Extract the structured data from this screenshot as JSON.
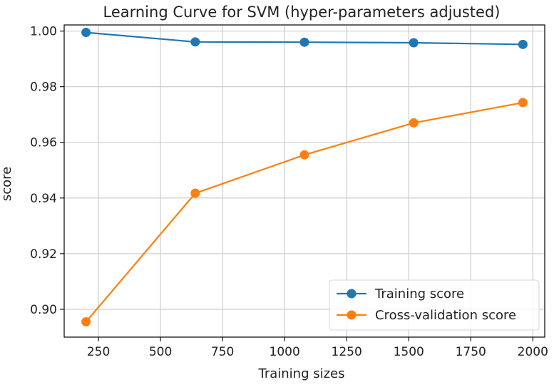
{
  "chart_data": {
    "type": "line",
    "title": "Learning Curve for SVM (hyper-parameters adjusted)",
    "xlabel": "Training sizes",
    "ylabel": "score",
    "x": [
      200,
      640,
      1080,
      1520,
      1960
    ],
    "series": [
      {
        "name": "Training score",
        "color": "#1f77b4",
        "values": [
          0.9995,
          0.9961,
          0.996,
          0.9958,
          0.9952
        ]
      },
      {
        "name": "Cross-validation score",
        "color": "#ff7f0e",
        "values": [
          0.8955,
          0.9417,
          0.9555,
          0.967,
          0.9743
        ]
      }
    ],
    "xticks": [
      250,
      500,
      750,
      1000,
      1250,
      1500,
      1750,
      2000
    ],
    "xtick_labels": [
      "250",
      "500",
      "750",
      "1000",
      "1250",
      "1500",
      "1750",
      "2000"
    ],
    "yticks": [
      0.9,
      0.92,
      0.94,
      0.96,
      0.98,
      1.0
    ],
    "ytick_labels": [
      "0.90",
      "0.92",
      "0.94",
      "0.96",
      "0.98",
      "1.00"
    ],
    "xlim": [
      112,
      2048
    ],
    "ylim": [
      0.89,
      1.0022
    ],
    "grid": true,
    "legend_position": "lower-right"
  }
}
